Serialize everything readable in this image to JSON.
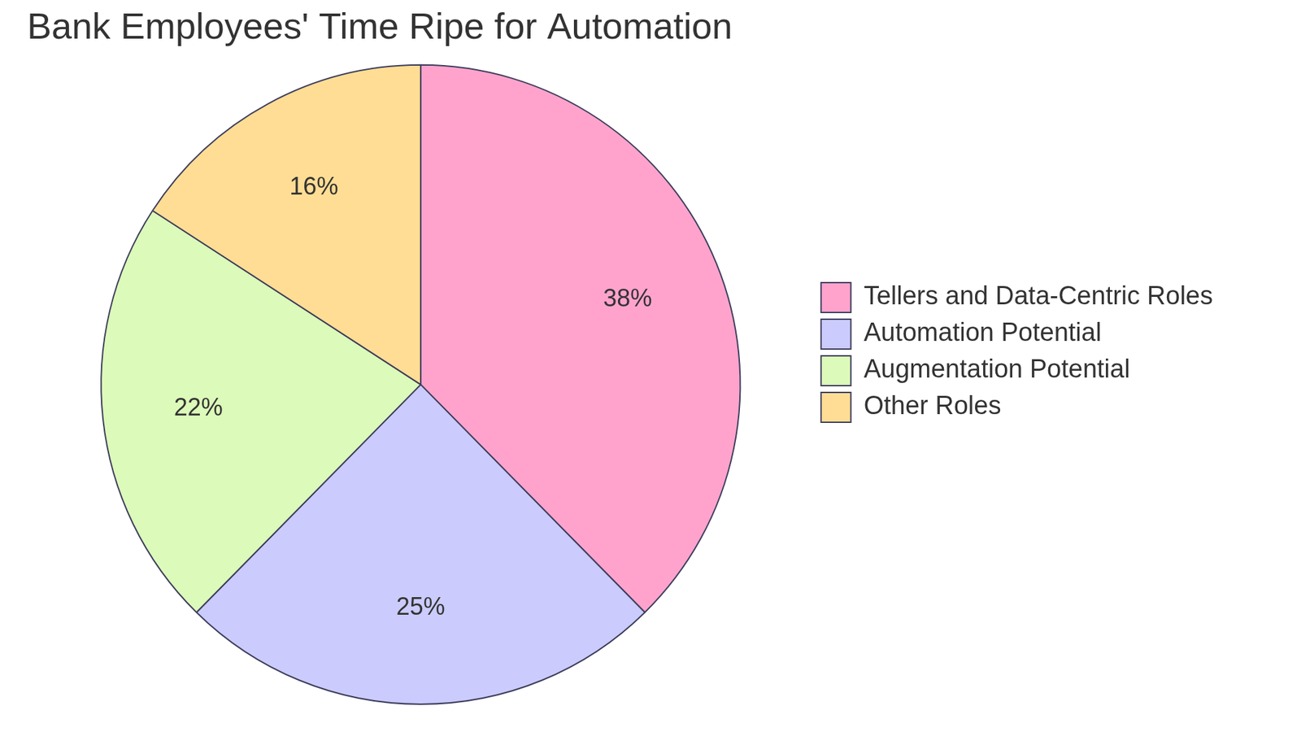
{
  "chart_data": {
    "type": "pie",
    "title": "Bank Employees' Time Ripe for Automation",
    "categories": [
      "Tellers and Data-Centric Roles",
      "Automation Potential",
      "Augmentation Potential",
      "Other Roles"
    ],
    "values": [
      38,
      25,
      22,
      16
    ],
    "value_labels": [
      "38%",
      "25%",
      "22%",
      "16%"
    ],
    "colors": [
      "#ffa3cd",
      "#cbcbfd",
      "#dcfab9",
      "#ffdd94"
    ],
    "data_labels": true,
    "legend": "right"
  }
}
